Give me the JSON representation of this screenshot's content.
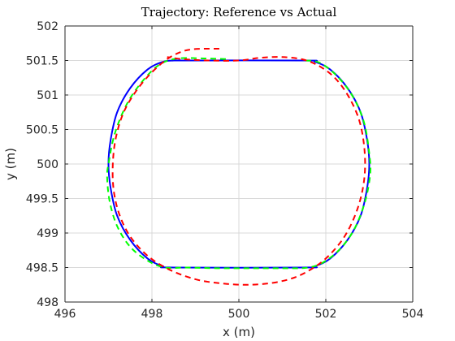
{
  "chart_data": {
    "type": "line",
    "title": "Trajectory: Reference vs Actual",
    "xlabel": "x (m)",
    "ylabel": "y (m)",
    "xlim": [
      496,
      504
    ],
    "ylim": [
      498,
      502
    ],
    "xticks": [
      496,
      498,
      500,
      502,
      504
    ],
    "yticks": [
      498,
      498.5,
      499,
      499.5,
      500,
      500.5,
      501,
      501.5,
      502
    ],
    "xtick_labels": [
      "496",
      "498",
      "500",
      "502",
      "504"
    ],
    "ytick_labels": [
      "498",
      "498.5",
      "499",
      "499.5",
      "500",
      "500.5",
      "501",
      "501.5",
      "502"
    ],
    "grid": true,
    "legend": null,
    "series": [
      {
        "color": "#0000ff",
        "style": "solid",
        "x": [
          498.5,
          501.5,
          501.75,
          502.1,
          502.5,
          502.8,
          502.95,
          503.0,
          502.95,
          502.8,
          502.5,
          502.1,
          501.75,
          501.5,
          498.5,
          498.25,
          497.9,
          497.5,
          497.2,
          497.05,
          497.0,
          497.05,
          497.2,
          497.5,
          497.9,
          498.25,
          498.5
        ],
        "y": [
          501.5,
          501.5,
          501.48,
          501.37,
          501.1,
          500.75,
          500.35,
          500.0,
          499.65,
          499.25,
          498.9,
          498.63,
          498.52,
          498.5,
          498.5,
          498.52,
          498.63,
          498.9,
          499.25,
          499.65,
          500.0,
          500.35,
          500.75,
          501.1,
          501.37,
          501.48,
          501.5
        ]
      },
      {
        "color": "#00ff00",
        "style": "dashed",
        "x": [
          499.7,
          499.2,
          498.6,
          498.2,
          497.85,
          497.45,
          497.15,
          497.0,
          496.97,
          497.03,
          497.2,
          497.5,
          497.9,
          498.3,
          498.8,
          499.5,
          500.5,
          501.3,
          501.6,
          501.9,
          502.3,
          502.65,
          502.9,
          503.02,
          503.0,
          502.88,
          502.62,
          502.25,
          501.85,
          501.5
        ],
        "y": [
          501.52,
          501.53,
          501.53,
          501.45,
          501.25,
          500.9,
          500.45,
          500.0,
          499.8,
          499.45,
          499.1,
          498.8,
          498.6,
          498.5,
          498.5,
          498.49,
          498.49,
          498.49,
          498.5,
          498.56,
          498.75,
          499.05,
          499.45,
          499.85,
          500.15,
          500.6,
          500.98,
          501.28,
          501.47,
          501.5
        ]
      },
      {
        "color": "#ff0000",
        "style": "dashed",
        "x": [
          499.55,
          499.2,
          498.9,
          498.65,
          498.35,
          498.0,
          497.65,
          497.35,
          497.17,
          497.1,
          497.12,
          497.25,
          497.5,
          497.9,
          498.4,
          499.0,
          499.6,
          500.2,
          500.8,
          501.3,
          501.7,
          502.05,
          502.4,
          502.65,
          502.82,
          502.9,
          502.88,
          502.77,
          502.55,
          502.25,
          501.9,
          501.5,
          501.0,
          500.5,
          500.0,
          499.3,
          498.7,
          498.35
        ],
        "y": [
          501.67,
          501.67,
          501.66,
          501.62,
          501.52,
          501.33,
          501.07,
          500.75,
          500.38,
          500.0,
          499.62,
          499.27,
          498.95,
          498.67,
          498.47,
          498.33,
          498.27,
          498.25,
          498.28,
          498.36,
          498.49,
          498.66,
          498.92,
          499.22,
          499.55,
          499.9,
          500.27,
          500.63,
          500.95,
          501.22,
          501.4,
          501.51,
          501.55,
          501.54,
          501.5,
          501.5,
          501.52,
          501.55
        ]
      }
    ]
  }
}
